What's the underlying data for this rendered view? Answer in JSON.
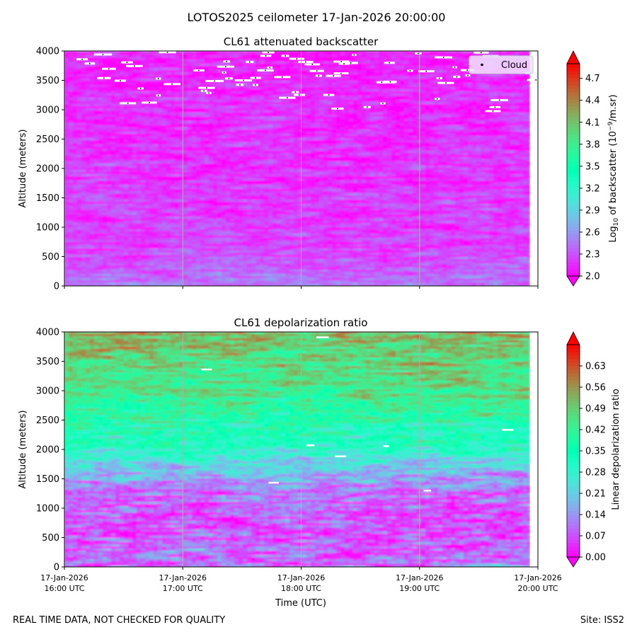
{
  "figure": {
    "suptitle": "LOTOS2025 ceilometer 17-Jan-2026 20:00:00",
    "footer_left": "REAL TIME DATA, NOT CHECKED FOR QUALITY",
    "footer_right": "Site: ISS2"
  },
  "chart_data": [
    {
      "type": "heatmap",
      "title": "CL61 attenuated backscatter",
      "ylabel": "Altitude (meters)",
      "xlabel": "",
      "ylim": [
        0,
        4000
      ],
      "yticks": [
        0,
        500,
        1000,
        1500,
        2000,
        2500,
        3000,
        3500,
        4000
      ],
      "xticks": [
        "17-Jan-2026 16:00 UTC",
        "17-Jan-2026 17:00 UTC",
        "17-Jan-2026 18:00 UTC",
        "17-Jan-2026 19:00 UTC",
        "17-Jan-2026 20:00 UTC"
      ],
      "xtick_labels_visible": false,
      "x_range": [
        "2026-01-17 16:00 UTC",
        "2026-01-17 20:00 UTC"
      ],
      "data_end": "2026-01-17 19:56 UTC",
      "grid": "vertical lines at hourly ticks",
      "colorbar": {
        "label": "Log10 of backscatter (10^-9/m.sr)",
        "range": [
          2.0,
          4.9
        ],
        "ticks": [
          "2.0",
          "2.3",
          "2.6",
          "2.9",
          "3.2",
          "3.5",
          "3.8",
          "4.1",
          "4.4",
          "4.7"
        ],
        "extend": "both",
        "colormap": "rainbow"
      },
      "field_profile": [
        {
          "altitude": 0,
          "value": 2.45
        },
        {
          "altitude": 300,
          "value": 2.35
        },
        {
          "altitude": 600,
          "value": 2.24
        },
        {
          "altitude": 1500,
          "value": 2.2
        },
        {
          "altitude": 2500,
          "value": 2.16
        },
        {
          "altitude": 3500,
          "value": 2.12
        },
        {
          "altitude": 4000,
          "value": 2.1
        }
      ],
      "legend": {
        "entries": [
          "Cloud"
        ],
        "placement": "top-right",
        "marker": "black dot"
      },
      "cloud_altitude_range": [
        2750,
        4000
      ],
      "notes": "White specks indicate cloud detections mainly between 3000 and 4000 m"
    },
    {
      "type": "heatmap",
      "title": "CL61 depolarization ratio",
      "ylabel": "Altitude (meters)",
      "xlabel": "Time (UTC)",
      "ylim": [
        0,
        4000
      ],
      "yticks": [
        0,
        500,
        1000,
        1500,
        2000,
        2500,
        3000,
        3500,
        4000
      ],
      "xticks": [
        "17-Jan-2026 16:00 UTC",
        "17-Jan-2026 17:00 UTC",
        "17-Jan-2026 18:00 UTC",
        "17-Jan-2026 19:00 UTC",
        "17-Jan-2026 20:00 UTC"
      ],
      "x_range": [
        "2026-01-17 16:00 UTC",
        "2026-01-17 20:00 UTC"
      ],
      "data_end": "2026-01-17 19:56 UTC",
      "grid": "vertical lines at hourly ticks",
      "colorbar": {
        "label": "Linear depolarization ratio",
        "range": [
          0.0,
          0.7
        ],
        "ticks": [
          "0.00",
          "0.07",
          "0.14",
          "0.21",
          "0.28",
          "0.35",
          "0.42",
          "0.49",
          "0.56",
          "0.63"
        ],
        "extend": "both",
        "colormap": "rainbow"
      },
      "field_profile": [
        {
          "altitude": 0,
          "value": 0.1
        },
        {
          "altitude": 600,
          "value": 0.06
        },
        {
          "altitude": 1200,
          "value": 0.09
        },
        {
          "altitude": 1500,
          "value": 0.15
        },
        {
          "altitude": 1800,
          "value": 0.24
        },
        {
          "altitude": 2000,
          "value": 0.3
        },
        {
          "altitude": 2500,
          "value": 0.38
        },
        {
          "altitude": 3000,
          "value": 0.45
        },
        {
          "altitude": 3500,
          "value": 0.47
        },
        {
          "altitude": 4000,
          "value": 0.52
        }
      ]
    }
  ]
}
